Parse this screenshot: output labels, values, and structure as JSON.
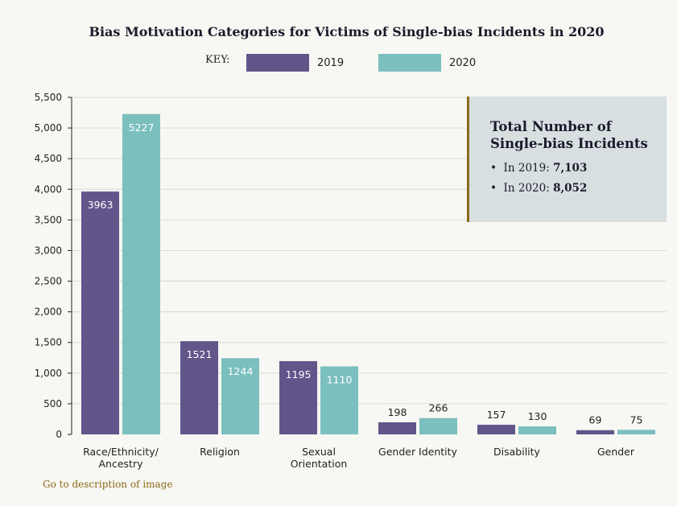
{
  "chart_data": {
    "type": "bar",
    "title": "Bias Motivation Categories for Victims of Single-bias Incidents in 2020",
    "key_label": "KEY:",
    "categories": [
      "Race/Ethnicity/ Ancestry",
      "Religion",
      "Sexual Orientation",
      "Gender Identity",
      "Disability",
      "Gender"
    ],
    "category_lines": [
      [
        "Race/Ethnicity/",
        "Ancestry"
      ],
      [
        "Religion"
      ],
      [
        "Sexual",
        "Orientation"
      ],
      [
        "Gender Identity"
      ],
      [
        "Disability"
      ],
      [
        "Gender"
      ]
    ],
    "series": [
      {
        "name": "2019",
        "color": "#62558a",
        "values": [
          3963,
          1521,
          1195,
          198,
          157,
          69
        ]
      },
      {
        "name": "2020",
        "color": "#7bbfbf",
        "values": [
          5227,
          1244,
          1110,
          266,
          130,
          75
        ]
      }
    ],
    "ylim": [
      0,
      5500
    ],
    "yticks": [
      0,
      500,
      1000,
      1500,
      2000,
      2500,
      3000,
      3500,
      4000,
      4500,
      5000,
      5500
    ],
    "ytick_labels": [
      "0",
      "500",
      "1,000",
      "1,500",
      "2,000",
      "2,500",
      "3,000",
      "3,500",
      "4,000",
      "4,500",
      "5,000",
      "5,500"
    ],
    "grid": true,
    "legend_placement": "top"
  },
  "summary": {
    "heading": "Total Number of Single-bias Incidents",
    "line1_label": "In 2019: ",
    "line1_value": "7,103",
    "line2_label": "In 2020: ",
    "line2_value": "8,052"
  },
  "link": "Go to description of image"
}
